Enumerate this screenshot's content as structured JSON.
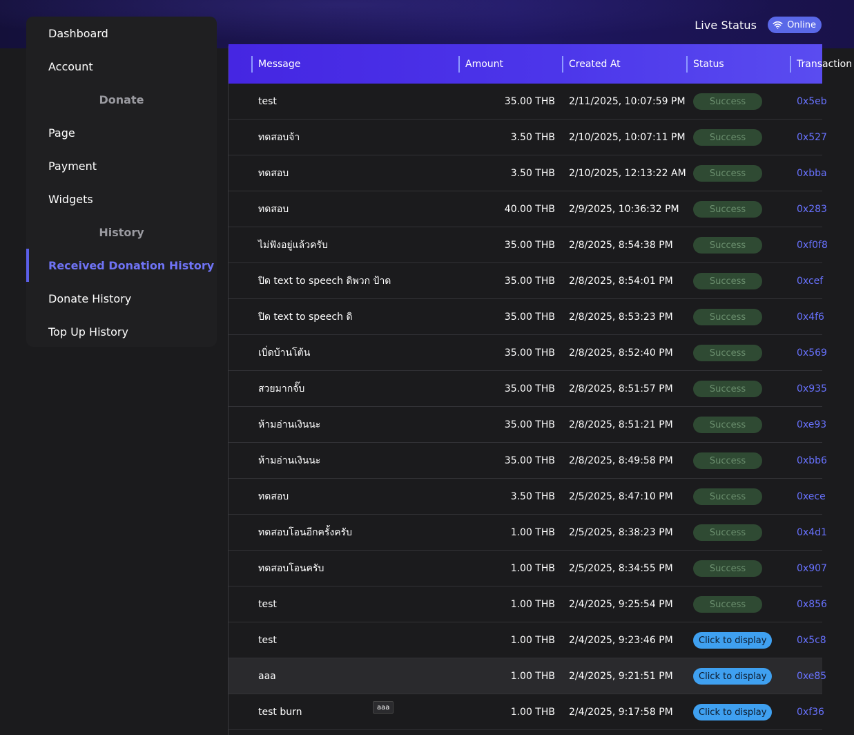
{
  "header": {
    "live_status_label": "Live Status",
    "online_badge": "Online",
    "online_color": "#5a68e8"
  },
  "sidebar": {
    "dashboard": "Dashboard",
    "account": "Account",
    "section_donate": "Donate",
    "page": "Page",
    "payment": "Payment",
    "widgets": "Widgets",
    "section_history": "History",
    "received_donation_history": "Received Donation History",
    "donate_history": "Donate History",
    "top_up_history": "Top Up History",
    "active_color": "#6f73f5"
  },
  "table": {
    "columns": [
      "Message",
      "Amount",
      "Created At",
      "Status",
      "Transaction"
    ],
    "rows": [
      {
        "message": "test",
        "amount": "35.00 THB",
        "created_at": "2/11/2025, 10:07:59 PM",
        "status": "Success",
        "tx": "0x5eb"
      },
      {
        "message": "ทดสอบจ้า",
        "amount": "3.50 THB",
        "created_at": "2/10/2025, 10:07:11 PM",
        "status": "Success",
        "tx": "0x527"
      },
      {
        "message": "ทดสอบ",
        "amount": "3.50 THB",
        "created_at": "2/10/2025, 12:13:22 AM",
        "status": "Success",
        "tx": "0xbba"
      },
      {
        "message": "ทดสอบ",
        "amount": "40.00 THB",
        "created_at": "2/9/2025, 10:36:32 PM",
        "status": "Success",
        "tx": "0x283"
      },
      {
        "message": "ไม่ฟังอยู่แล้วครับ",
        "amount": "35.00 THB",
        "created_at": "2/8/2025, 8:54:38 PM",
        "status": "Success",
        "tx": "0xf0f8"
      },
      {
        "message": "ปิด text to speech ดิพวก ป้าด",
        "amount": "35.00 THB",
        "created_at": "2/8/2025, 8:54:01 PM",
        "status": "Success",
        "tx": "0xcef"
      },
      {
        "message": "ปิด text to speech ดิ",
        "amount": "35.00 THB",
        "created_at": "2/8/2025, 8:53:23 PM",
        "status": "Success",
        "tx": "0x4f6"
      },
      {
        "message": "เบิ่ดบ้านโต้น",
        "amount": "35.00 THB",
        "created_at": "2/8/2025, 8:52:40 PM",
        "status": "Success",
        "tx": "0x569"
      },
      {
        "message": "สวยมากจั๊บ",
        "amount": "35.00 THB",
        "created_at": "2/8/2025, 8:51:57 PM",
        "status": "Success",
        "tx": "0x935"
      },
      {
        "message": "ห้ามอ่านเงินนะ",
        "amount": "35.00 THB",
        "created_at": "2/8/2025, 8:51:21 PM",
        "status": "Success",
        "tx": "0xe93"
      },
      {
        "message": "ห้ามอ่านเงินนะ",
        "amount": "35.00 THB",
        "created_at": "2/8/2025, 8:49:58 PM",
        "status": "Success",
        "tx": "0xbb6"
      },
      {
        "message": "ทดสอบ",
        "amount": "3.50 THB",
        "created_at": "2/5/2025, 8:47:10 PM",
        "status": "Success",
        "tx": "0xece"
      },
      {
        "message": "ทดสอบโอนอีกครั้งครับ",
        "amount": "1.00 THB",
        "created_at": "2/5/2025, 8:38:23 PM",
        "status": "Success",
        "tx": "0x4d1"
      },
      {
        "message": "ทดสอบโอนครับ",
        "amount": "1.00 THB",
        "created_at": "2/5/2025, 8:34:55 PM",
        "status": "Success",
        "tx": "0x907"
      },
      {
        "message": "test",
        "amount": "1.00 THB",
        "created_at": "2/4/2025, 9:25:54 PM",
        "status": "Success",
        "tx": "0x856"
      },
      {
        "message": "test",
        "amount": "1.00 THB",
        "created_at": "2/4/2025, 9:23:46 PM",
        "status": "Click to display",
        "tx": "0x5c8"
      },
      {
        "message": "aaa",
        "amount": "1.00 THB",
        "created_at": "2/4/2025, 9:21:51 PM",
        "status": "Click to display",
        "tx": "0xe85"
      },
      {
        "message": "test burn",
        "amount": "1.00 THB",
        "created_at": "2/4/2025, 9:17:58 PM",
        "status": "Click to display",
        "tx": "0xf36"
      }
    ],
    "hovered_row_index": 16,
    "success_color": "#2f4a33",
    "display_color": "#3fa0f0",
    "tx_color": "#6872ff"
  },
  "tooltip": {
    "text": "aaa"
  }
}
